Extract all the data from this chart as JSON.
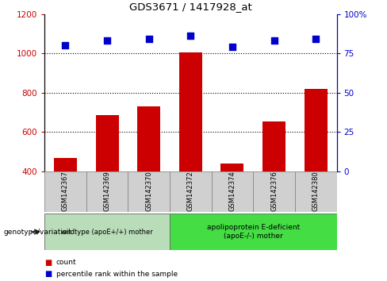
{
  "title": "GDS3671 / 1417928_at",
  "samples": [
    "GSM142367",
    "GSM142369",
    "GSM142370",
    "GSM142372",
    "GSM142374",
    "GSM142376",
    "GSM142380"
  ],
  "counts": [
    470,
    685,
    730,
    1005,
    440,
    655,
    820
  ],
  "percentiles": [
    80,
    83,
    84,
    86,
    79,
    83,
    84
  ],
  "ylim_left": [
    400,
    1200
  ],
  "ylim_right": [
    0,
    100
  ],
  "yticks_left": [
    400,
    600,
    800,
    1000,
    1200
  ],
  "yticks_right": [
    0,
    25,
    50,
    75,
    100
  ],
  "ytick_labels_right": [
    "0",
    "25",
    "50",
    "75",
    "100%"
  ],
  "bar_color": "#cc0000",
  "dot_color": "#0000cc",
  "bar_bottom": 400,
  "group1_label": "wildtype (apoE+/+) mother",
  "group1_color": "#b8ddb8",
  "group1_indices": [
    0,
    1,
    2
  ],
  "group2_label": "apolipoprotein E-deficient\n(apoE-/-) mother",
  "group2_color": "#44dd44",
  "group2_indices": [
    3,
    4,
    5,
    6
  ],
  "xlabel_label": "genotype/variation",
  "legend_count_label": "count",
  "legend_pct_label": "percentile rank within the sample",
  "sample_box_color": "#d0d0d0",
  "sample_box_edge": "#888888"
}
